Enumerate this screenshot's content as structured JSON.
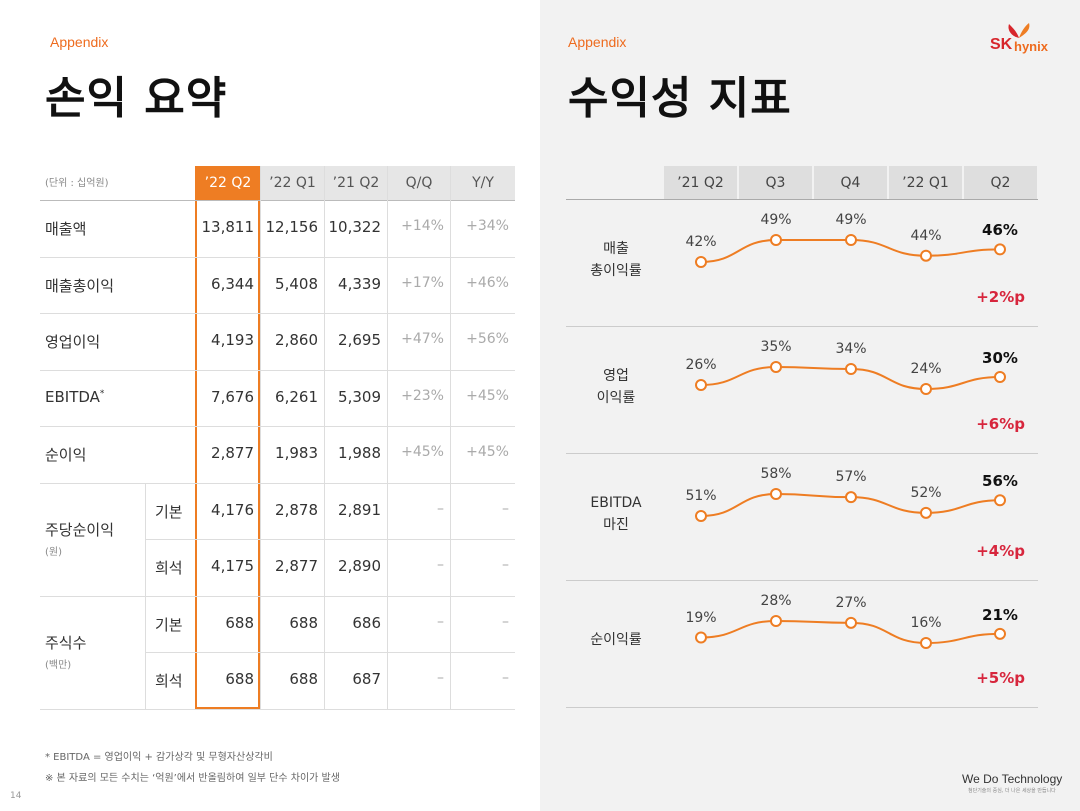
{
  "left": {
    "appendix": "Appendix",
    "title": "손익 요약",
    "unit": "(단위 : 십억원)",
    "headers": [
      "’22 Q2",
      "’22 Q1",
      "’21 Q2",
      "Q/Q",
      "Y/Y"
    ],
    "rows": [
      {
        "label": "매출액",
        "values": [
          "13,811",
          "12,156",
          "10,322",
          "+14%",
          "+34%"
        ]
      },
      {
        "label": "매출총이익",
        "values": [
          "6,344",
          "5,408",
          "4,339",
          "+17%",
          "+46%"
        ]
      },
      {
        "label": "영업이익",
        "values": [
          "4,193",
          "2,860",
          "2,695",
          "+47%",
          "+56%"
        ]
      },
      {
        "label": "EBITDA",
        "values": [
          "7,676",
          "6,261",
          "5,309",
          "+23%",
          "+45%"
        ]
      },
      {
        "label": "순이익",
        "values": [
          "2,877",
          "1,983",
          "1,988",
          "+45%",
          "+45%"
        ]
      }
    ],
    "ebitda_mark": "*",
    "eps": {
      "label": "주당순이익",
      "unit": "(원)",
      "rows": [
        {
          "sub": "기본",
          "values": [
            "4,176",
            "2,878",
            "2,891",
            "–",
            "–"
          ]
        },
        {
          "sub": "희석",
          "values": [
            "4,175",
            "2,877",
            "2,890",
            "–",
            "–"
          ]
        }
      ]
    },
    "shares": {
      "label": "주식수",
      "unit": "(백만)",
      "rows": [
        {
          "sub": "기본",
          "values": [
            "688",
            "688",
            "686",
            "–",
            "–"
          ]
        },
        {
          "sub": "희석",
          "values": [
            "688",
            "688",
            "687",
            "–",
            "–"
          ]
        }
      ]
    },
    "footnote1": "* EBITDA = 영업이익 + 감가상각 및 무형자산상각비",
    "footnote2": "※ 본 자료의 모든 수치는 ‘억원’에서 반올림하여 일부 단수 차이가 발생",
    "page": "14"
  },
  "right": {
    "appendix": "Appendix",
    "title": "수익성 지표",
    "logo_sk": "SK",
    "logo_hynix": "hynix",
    "headers": [
      "’21 Q2",
      "Q3",
      "Q4",
      "’22 Q1",
      "Q2"
    ],
    "accent_color": "#ee7d23",
    "delta_color": "#d7263d",
    "metrics": [
      {
        "label1": "매출",
        "label2": "총이익률",
        "values": [
          "42%",
          "49%",
          "49%",
          "44%",
          "46%"
        ],
        "delta": "+2%p"
      },
      {
        "label1": "영업",
        "label2": "이익률",
        "values": [
          "26%",
          "35%",
          "34%",
          "24%",
          "30%"
        ],
        "delta": "+6%p"
      },
      {
        "label1": "EBITDA",
        "label2": "마진",
        "values": [
          "51%",
          "58%",
          "57%",
          "52%",
          "56%"
        ],
        "delta": "+4%p"
      },
      {
        "label1": "순이익률",
        "label2": "",
        "values": [
          "19%",
          "28%",
          "27%",
          "16%",
          "21%"
        ],
        "delta": "+5%p"
      }
    ],
    "wedo": "We Do Technology",
    "wedo_sub": "첨단기술의 중심, 더 나은 세상을 만듭니다"
  },
  "chart_data": [
    {
      "type": "line",
      "categories": [
        "’21 Q2",
        "Q3",
        "Q4",
        "’22 Q1",
        "Q2"
      ],
      "series": [
        {
          "name": "매출 총이익률",
          "values": [
            42,
            49,
            49,
            44,
            46
          ]
        }
      ]
    },
    {
      "type": "line",
      "categories": [
        "’21 Q2",
        "Q3",
        "Q4",
        "’22 Q1",
        "Q2"
      ],
      "series": [
        {
          "name": "영업 이익률",
          "values": [
            26,
            35,
            34,
            24,
            30
          ]
        }
      ]
    },
    {
      "type": "line",
      "categories": [
        "’21 Q2",
        "Q3",
        "Q4",
        "’22 Q1",
        "Q2"
      ],
      "series": [
        {
          "name": "EBITDA 마진",
          "values": [
            51,
            58,
            57,
            52,
            56
          ]
        }
      ]
    },
    {
      "type": "line",
      "categories": [
        "’21 Q2",
        "Q3",
        "Q4",
        "’22 Q1",
        "Q2"
      ],
      "series": [
        {
          "name": "순이익률",
          "values": [
            19,
            28,
            27,
            16,
            21
          ]
        }
      ]
    }
  ]
}
